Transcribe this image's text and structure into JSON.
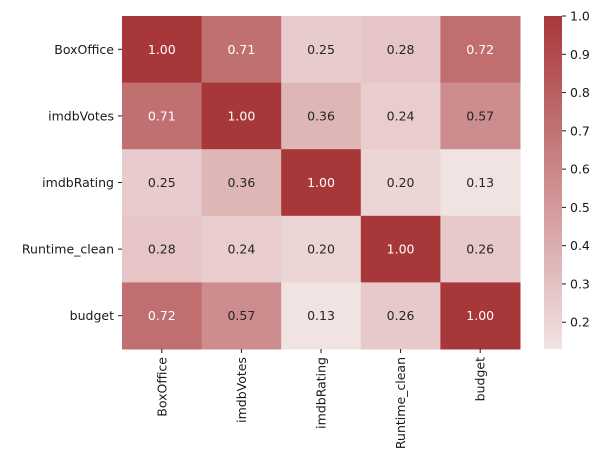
{
  "chart_data": {
    "type": "heatmap",
    "title": "",
    "xlabel": "",
    "ylabel": "",
    "x_categories": [
      "BoxOffice",
      "imdbVotes",
      "imdbRating",
      "Runtime_clean",
      "budget"
    ],
    "y_categories": [
      "BoxOffice",
      "imdbVotes",
      "imdbRating",
      "Runtime_clean",
      "budget"
    ],
    "values": [
      [
        1.0,
        0.71,
        0.25,
        0.28,
        0.72
      ],
      [
        0.71,
        1.0,
        0.36,
        0.24,
        0.57
      ],
      [
        0.25,
        0.36,
        1.0,
        0.2,
        0.13
      ],
      [
        0.28,
        0.24,
        0.2,
        1.0,
        0.26
      ],
      [
        0.72,
        0.57,
        0.13,
        0.26,
        1.0
      ]
    ],
    "cell_labels": [
      [
        "1.00",
        "0.71",
        "0.25",
        "0.28",
        "0.72"
      ],
      [
        "0.71",
        "1.00",
        "0.36",
        "0.24",
        "0.57"
      ],
      [
        "0.25",
        "0.36",
        "1.00",
        "0.20",
        "0.13"
      ],
      [
        "0.28",
        "0.24",
        "0.20",
        "1.00",
        "0.26"
      ],
      [
        "0.72",
        "0.57",
        "0.13",
        "0.26",
        "1.00"
      ]
    ],
    "colorbar": {
      "range": [
        0.13,
        1.0
      ],
      "ticks": [
        0.2,
        0.3,
        0.4,
        0.5,
        0.6,
        0.7,
        0.8,
        0.9,
        1.0
      ],
      "tick_labels": [
        "0.2",
        "0.3",
        "0.4",
        "0.5",
        "0.6",
        "0.7",
        "0.8",
        "0.9",
        "1.0"
      ],
      "color_low": "#f2e3e3",
      "color_high": "#a8373a"
    },
    "grid": false,
    "x_tick_rotation": "vertical"
  }
}
